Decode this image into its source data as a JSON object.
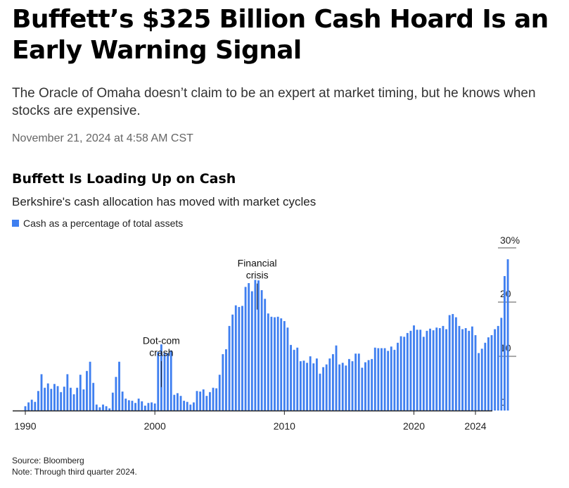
{
  "article": {
    "headline": "Buffett’s $325 Billion Cash Hoard Is an Early Warning Signal",
    "dek": "The Oracle of Omaha doesn’t claim to be an expert at market timing, but he knows when stocks are expensive.",
    "dateline": "November 21, 2024 at 4:58 AM CST"
  },
  "colors": {
    "bar": "#3f7ff0",
    "axis": "#222222",
    "tick": "#444444"
  },
  "chart_data": {
    "type": "bar",
    "title": "Buffett Is Loading Up on Cash",
    "subtitle": "Berkshire's cash allocation has moved with market cycles",
    "xlabel": "",
    "ylabel": "",
    "ylim": [
      0,
      30
    ],
    "y_ticks": [
      {
        "value": 0,
        "label": "0"
      },
      {
        "value": 10,
        "label": "10"
      },
      {
        "value": 20,
        "label": "20"
      },
      {
        "value": 30,
        "label": "30%"
      }
    ],
    "x_ticks": [
      {
        "value": 1990,
        "label": "1990"
      },
      {
        "value": 2000,
        "label": "2000"
      },
      {
        "value": 2010,
        "label": "2010"
      },
      {
        "value": 2020,
        "label": "2020"
      },
      {
        "value": 2024.75,
        "label": "2024"
      }
    ],
    "x_start": 1990.0,
    "x_step": 0.25,
    "series": [
      {
        "name": "Cash as a percentage of total assets",
        "values": [
          0.8,
          1.5,
          2.0,
          1.6,
          3.6,
          6.7,
          4.2,
          5.0,
          4.0,
          4.9,
          4.5,
          3.4,
          4.4,
          6.7,
          4.2,
          3.0,
          4.2,
          6.6,
          3.9,
          7.3,
          9.0,
          5.1,
          1.1,
          0.6,
          1.1,
          0.8,
          0.4,
          3.3,
          6.2,
          9.0,
          3.5,
          2.2,
          1.9,
          1.8,
          1.4,
          2.2,
          1.7,
          0.9,
          1.4,
          1.5,
          1.3,
          10.8,
          12.2,
          10.7,
          10.6,
          11.1,
          2.9,
          3.2,
          2.7,
          1.8,
          1.6,
          1.1,
          1.5,
          3.6,
          3.5,
          3.9,
          2.7,
          3.4,
          4.2,
          4.1,
          6.6,
          10.4,
          11.3,
          15.6,
          17.7,
          19.4,
          19.1,
          19.3,
          22.8,
          23.5,
          22.0,
          24.1,
          24.0,
          22.2,
          20.6,
          17.9,
          17.3,
          17.2,
          17.3,
          17.0,
          16.5,
          15.3,
          12.1,
          11.2,
          11.6,
          9.1,
          9.2,
          8.8,
          10.0,
          8.7,
          9.6,
          6.8,
          8.0,
          8.5,
          9.6,
          10.4,
          12.0,
          8.5,
          8.8,
          8.3,
          9.5,
          9.1,
          10.5,
          10.5,
          7.9,
          8.9,
          9.3,
          9.5,
          11.6,
          11.5,
          11.5,
          11.5,
          11.0,
          11.8,
          11.2,
          12.5,
          13.7,
          13.6,
          14.3,
          14.7,
          15.7,
          14.9,
          14.9,
          13.6,
          14.7,
          15.1,
          14.8,
          15.3,
          15.2,
          15.6,
          15.0,
          17.6,
          17.8,
          17.2,
          15.6,
          15.0,
          15.2,
          14.7,
          15.5,
          13.9,
          10.6,
          11.4,
          12.5,
          13.5,
          13.9,
          15.0,
          15.6,
          17.1,
          24.8,
          27.9
        ]
      }
    ],
    "annotations": [
      {
        "lines": [
          "Dot-com",
          "crash"
        ],
        "x": 2000.5,
        "value": 3.8
      },
      {
        "lines": [
          "Financial",
          "crisis"
        ],
        "x": 2007.9,
        "value": 18.1
      }
    ]
  },
  "footer": {
    "source": "Source: Bloomberg",
    "note": "Note: Through third quarter 2024."
  }
}
